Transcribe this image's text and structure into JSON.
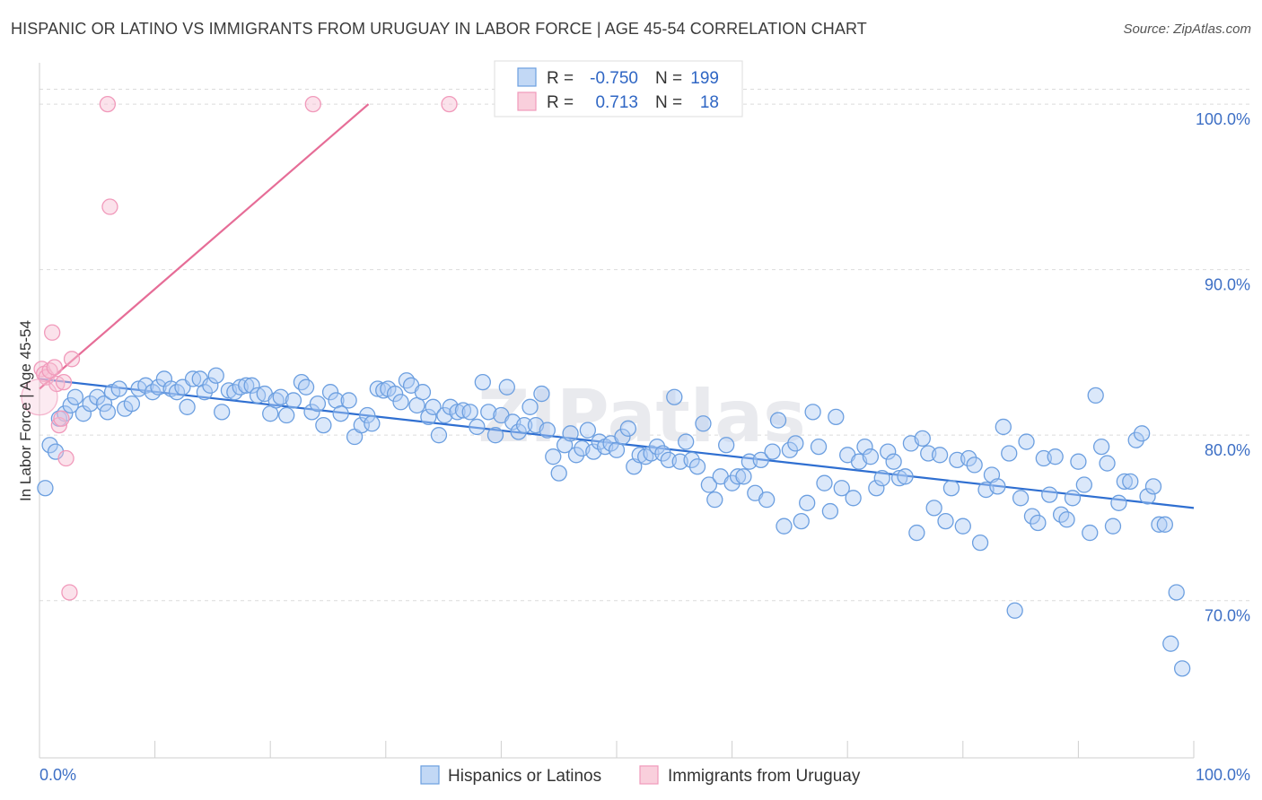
{
  "header": {
    "title": "HISPANIC OR LATINO VS IMMIGRANTS FROM URUGUAY IN LABOR FORCE | AGE 45-54 CORRELATION CHART",
    "source": "Source: ZipAtlas.com"
  },
  "watermark": "ZIPatlas",
  "chart_data": {
    "type": "scatter",
    "title": "HISPANIC OR LATINO VS IMMIGRANTS FROM URUGUAY IN LABOR FORCE | AGE 45-54 CORRELATION CHART",
    "xlabel": "",
    "ylabel": "In Labor Force | Age 45-54",
    "xlim": [
      0,
      100
    ],
    "ylim": [
      60.5,
      102.5
    ],
    "x_tick_labels": [
      "0.0%",
      "100.0%"
    ],
    "y_ticks": [
      70,
      80,
      90,
      100
    ],
    "y_tick_labels": [
      "70.0%",
      "80.0%",
      "90.0%",
      "100.0%"
    ],
    "grid": true,
    "legend_position": "top-center",
    "series": [
      {
        "name": "Hispanics or Latinos",
        "color": "#6c9fe0",
        "line_color": "#2f6fd1",
        "r_label": "R =",
        "r_value": "-0.750",
        "n_label": "N =",
        "n_value": "199",
        "trend": [
          [
            0,
            83.4
          ],
          [
            100,
            75.6
          ]
        ],
        "points": [
          [
            0.5,
            76.8
          ],
          [
            0.9,
            79.4
          ],
          [
            1.4,
            79.0
          ],
          [
            1.7,
            81.0
          ],
          [
            2.2,
            81.3
          ],
          [
            2.7,
            81.8
          ],
          [
            3.1,
            82.3
          ],
          [
            3.8,
            81.3
          ],
          [
            4.4,
            81.9
          ],
          [
            5.0,
            82.3
          ],
          [
            5.6,
            81.9
          ],
          [
            5.9,
            81.4
          ],
          [
            6.3,
            82.6
          ],
          [
            6.9,
            82.8
          ],
          [
            7.4,
            81.6
          ],
          [
            8.0,
            81.9
          ],
          [
            8.6,
            82.8
          ],
          [
            9.2,
            83.0
          ],
          [
            9.8,
            82.6
          ],
          [
            10.3,
            82.9
          ],
          [
            10.8,
            83.4
          ],
          [
            11.4,
            82.8
          ],
          [
            11.9,
            82.6
          ],
          [
            12.4,
            82.9
          ],
          [
            12.8,
            81.7
          ],
          [
            13.3,
            83.4
          ],
          [
            13.9,
            83.4
          ],
          [
            14.3,
            82.6
          ],
          [
            14.8,
            83.0
          ],
          [
            15.3,
            83.6
          ],
          [
            15.8,
            81.4
          ],
          [
            16.4,
            82.7
          ],
          [
            16.9,
            82.6
          ],
          [
            17.4,
            82.9
          ],
          [
            17.9,
            83.0
          ],
          [
            18.4,
            83.0
          ],
          [
            18.9,
            82.4
          ],
          [
            19.5,
            82.5
          ],
          [
            20.0,
            81.3
          ],
          [
            20.5,
            82.1
          ],
          [
            20.9,
            82.3
          ],
          [
            21.4,
            81.2
          ],
          [
            22.0,
            82.1
          ],
          [
            22.7,
            83.2
          ],
          [
            23.1,
            82.9
          ],
          [
            23.6,
            81.4
          ],
          [
            24.1,
            81.9
          ],
          [
            24.6,
            80.6
          ],
          [
            25.2,
            82.6
          ],
          [
            25.7,
            82.1
          ],
          [
            26.1,
            81.3
          ],
          [
            26.8,
            82.1
          ],
          [
            27.3,
            79.9
          ],
          [
            27.9,
            80.6
          ],
          [
            28.4,
            81.2
          ],
          [
            28.8,
            80.7
          ],
          [
            29.3,
            82.8
          ],
          [
            29.8,
            82.7
          ],
          [
            30.2,
            82.8
          ],
          [
            30.8,
            82.5
          ],
          [
            31.3,
            82.0
          ],
          [
            31.8,
            83.3
          ],
          [
            32.2,
            83.0
          ],
          [
            32.7,
            81.8
          ],
          [
            33.2,
            82.6
          ],
          [
            33.7,
            81.1
          ],
          [
            34.1,
            81.7
          ],
          [
            34.6,
            80.0
          ],
          [
            35.1,
            81.2
          ],
          [
            35.6,
            81.7
          ],
          [
            36.2,
            81.4
          ],
          [
            36.7,
            81.5
          ],
          [
            37.3,
            81.4
          ],
          [
            37.9,
            80.5
          ],
          [
            38.4,
            83.2
          ],
          [
            38.9,
            81.4
          ],
          [
            39.5,
            80.0
          ],
          [
            40.0,
            81.2
          ],
          [
            40.5,
            82.9
          ],
          [
            41.0,
            80.8
          ],
          [
            41.5,
            80.2
          ],
          [
            42.0,
            80.6
          ],
          [
            42.5,
            81.7
          ],
          [
            43.0,
            80.6
          ],
          [
            43.5,
            82.5
          ],
          [
            44.0,
            80.3
          ],
          [
            44.5,
            78.7
          ],
          [
            45.0,
            77.7
          ],
          [
            45.5,
            79.4
          ],
          [
            46.0,
            80.1
          ],
          [
            46.5,
            78.8
          ],
          [
            47.0,
            79.2
          ],
          [
            47.5,
            80.3
          ],
          [
            48.0,
            79.0
          ],
          [
            48.5,
            79.6
          ],
          [
            49.0,
            79.3
          ],
          [
            49.5,
            79.5
          ],
          [
            50.0,
            79.1
          ],
          [
            50.5,
            79.9
          ],
          [
            51.0,
            80.4
          ],
          [
            51.5,
            78.1
          ],
          [
            52.0,
            78.8
          ],
          [
            52.5,
            78.7
          ],
          [
            53.0,
            78.9
          ],
          [
            53.5,
            79.3
          ],
          [
            54.0,
            78.9
          ],
          [
            54.5,
            78.5
          ],
          [
            55.0,
            82.3
          ],
          [
            55.5,
            78.4
          ],
          [
            56.0,
            79.6
          ],
          [
            56.5,
            78.5
          ],
          [
            57.0,
            78.1
          ],
          [
            57.5,
            80.7
          ],
          [
            58.0,
            77.0
          ],
          [
            58.5,
            76.1
          ],
          [
            59.0,
            77.5
          ],
          [
            59.5,
            79.4
          ],
          [
            60.0,
            77.1
          ],
          [
            60.5,
            77.5
          ],
          [
            61.0,
            77.5
          ],
          [
            61.5,
            78.4
          ],
          [
            62.0,
            76.5
          ],
          [
            62.5,
            78.5
          ],
          [
            63.0,
            76.1
          ],
          [
            63.5,
            79.0
          ],
          [
            64.0,
            80.9
          ],
          [
            64.5,
            74.5
          ],
          [
            65.0,
            79.1
          ],
          [
            65.5,
            79.5
          ],
          [
            66.0,
            74.8
          ],
          [
            66.5,
            75.9
          ],
          [
            67.0,
            81.4
          ],
          [
            67.5,
            79.3
          ],
          [
            68.0,
            77.1
          ],
          [
            68.5,
            75.4
          ],
          [
            69.0,
            81.1
          ],
          [
            69.5,
            76.8
          ],
          [
            70.0,
            78.8
          ],
          [
            70.5,
            76.2
          ],
          [
            71.0,
            78.4
          ],
          [
            71.5,
            79.3
          ],
          [
            72.0,
            78.7
          ],
          [
            72.5,
            76.8
          ],
          [
            73.0,
            77.4
          ],
          [
            73.5,
            79.0
          ],
          [
            74.0,
            78.4
          ],
          [
            74.5,
            77.4
          ],
          [
            75.0,
            77.5
          ],
          [
            75.5,
            79.5
          ],
          [
            76.0,
            74.1
          ],
          [
            76.5,
            79.8
          ],
          [
            77.0,
            78.9
          ],
          [
            77.5,
            75.6
          ],
          [
            78.0,
            78.8
          ],
          [
            78.5,
            74.8
          ],
          [
            79.0,
            76.8
          ],
          [
            79.5,
            78.5
          ],
          [
            80.0,
            74.5
          ],
          [
            80.5,
            78.6
          ],
          [
            81.0,
            78.2
          ],
          [
            81.5,
            73.5
          ],
          [
            82.0,
            76.7
          ],
          [
            82.5,
            77.6
          ],
          [
            83.0,
            76.9
          ],
          [
            83.5,
            80.5
          ],
          [
            84.0,
            78.9
          ],
          [
            84.5,
            69.4
          ],
          [
            85.0,
            76.2
          ],
          [
            85.5,
            79.6
          ],
          [
            86.0,
            75.1
          ],
          [
            86.5,
            74.7
          ],
          [
            87.0,
            78.6
          ],
          [
            87.5,
            76.4
          ],
          [
            88.0,
            78.7
          ],
          [
            88.5,
            75.2
          ],
          [
            89.0,
            74.9
          ],
          [
            89.5,
            76.2
          ],
          [
            90.0,
            78.4
          ],
          [
            90.5,
            77.0
          ],
          [
            91.0,
            74.1
          ],
          [
            91.5,
            82.4
          ],
          [
            92.0,
            79.3
          ],
          [
            92.5,
            78.3
          ],
          [
            93.0,
            74.5
          ],
          [
            93.5,
            75.9
          ],
          [
            94.0,
            77.2
          ],
          [
            94.5,
            77.2
          ],
          [
            95.0,
            79.7
          ],
          [
            95.5,
            80.1
          ],
          [
            96.0,
            76.3
          ],
          [
            96.5,
            76.9
          ],
          [
            97.0,
            74.6
          ],
          [
            97.5,
            74.6
          ],
          [
            98.0,
            67.4
          ],
          [
            98.5,
            70.5
          ],
          [
            99.0,
            65.9
          ]
        ]
      },
      {
        "name": "Immigrants from Uruguay",
        "color": "#f19abb",
        "line_color": "#e66d97",
        "r_label": "R =",
        "r_value": "0.713",
        "n_label": "N =",
        "n_value": "18",
        "trend": [
          [
            0,
            82.8
          ],
          [
            28.5,
            100
          ]
        ],
        "points": [
          [
            0.2,
            84.0
          ],
          [
            0.4,
            83.7
          ],
          [
            0.6,
            83.5
          ],
          [
            0.9,
            83.9
          ],
          [
            1.1,
            86.2
          ],
          [
            1.3,
            84.1
          ],
          [
            1.5,
            83.1
          ],
          [
            1.7,
            80.6
          ],
          [
            1.9,
            81.0
          ],
          [
            2.1,
            83.2
          ],
          [
            2.3,
            78.6
          ],
          [
            2.6,
            70.5
          ],
          [
            2.8,
            84.6
          ],
          [
            5.9,
            100
          ],
          [
            6.1,
            93.8
          ],
          [
            23.7,
            100
          ],
          [
            35.5,
            100
          ],
          [
            0.0,
            82.3
          ]
        ]
      }
    ]
  }
}
